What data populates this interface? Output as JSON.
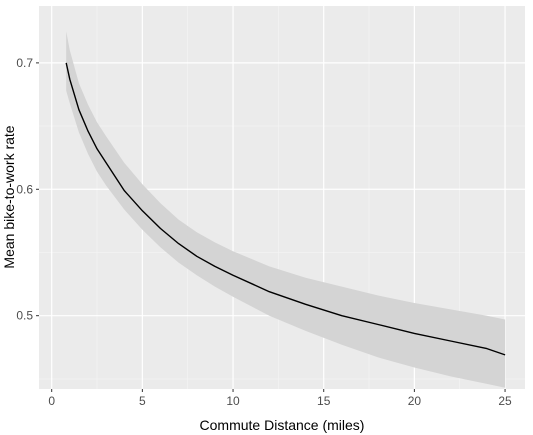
{
  "chart_data": {
    "type": "line",
    "xlabel": "Commute Distance (miles)",
    "ylabel": "Mean bike-to-work rate",
    "xlim": [
      -0.7,
      26.1
    ],
    "ylim": [
      0.442,
      0.745
    ],
    "x_ticks": [
      0,
      5,
      10,
      15,
      20,
      25
    ],
    "x_tick_labels": [
      "0",
      "5",
      "10",
      "15",
      "20",
      "25"
    ],
    "y_ticks": [
      0.5,
      0.6,
      0.7
    ],
    "y_tick_labels": [
      "0.5",
      "0.6",
      "0.7"
    ],
    "grid": true,
    "legend": "none",
    "series": [
      {
        "x": [
          0.8,
          1,
          1.5,
          2,
          2.5,
          3,
          4,
          5,
          6,
          7,
          8,
          9,
          10,
          12,
          14,
          16,
          18,
          20,
          22,
          24,
          25
        ],
        "y": [
          0.7,
          0.687,
          0.663,
          0.646,
          0.632,
          0.621,
          0.599,
          0.583,
          0.569,
          0.557,
          0.547,
          0.539,
          0.532,
          0.519,
          0.509,
          0.5,
          0.493,
          0.486,
          0.48,
          0.474,
          0.469
        ],
        "lower": [
          0.678,
          0.668,
          0.645,
          0.628,
          0.614,
          0.603,
          0.584,
          0.568,
          0.554,
          0.542,
          0.532,
          0.523,
          0.515,
          0.5,
          0.488,
          0.477,
          0.467,
          0.459,
          0.452,
          0.446,
          0.443
        ],
        "upper": [
          0.725,
          0.71,
          0.684,
          0.667,
          0.653,
          0.642,
          0.621,
          0.604,
          0.589,
          0.576,
          0.566,
          0.558,
          0.551,
          0.539,
          0.53,
          0.523,
          0.516,
          0.51,
          0.505,
          0.5,
          0.497
        ]
      }
    ],
    "colors": {
      "panel": "#ebebeb",
      "grid_major": "#ffffff",
      "grid_minor": "#f5f5f5",
      "ribbon": "#d4d4d4",
      "line": "#000000"
    }
  }
}
